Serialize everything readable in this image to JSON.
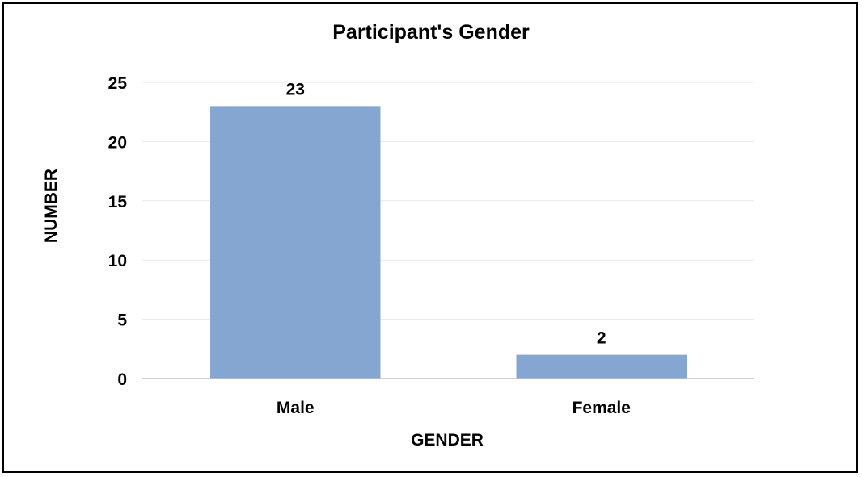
{
  "chart_data": {
    "type": "bar",
    "title": "Participant's Gender",
    "xlabel": "GENDER",
    "ylabel": "NUMBER",
    "categories": [
      "Male",
      "Female"
    ],
    "values": [
      23,
      2
    ],
    "data_labels": [
      "23",
      "2"
    ],
    "ylim": [
      0,
      25
    ],
    "yticks": [
      0,
      5,
      10,
      15,
      20,
      25
    ],
    "ytick_labels": [
      "0",
      "5",
      "10",
      "15",
      "20",
      "25"
    ],
    "grid": true,
    "legend": "none",
    "colors": {
      "bar": "#84A6D1",
      "grid": "#E8E8E8",
      "axis": "#BFBFBF",
      "text": "#000000",
      "border": "#000000"
    }
  }
}
